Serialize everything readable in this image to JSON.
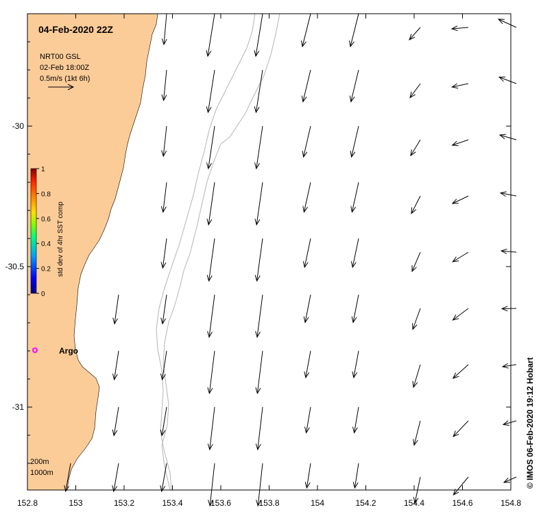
{
  "map": {
    "title": "04-Feb-2020 22Z",
    "legend": {
      "product": "NRT00 GSL",
      "time": "02-Feb 18:00Z",
      "scale": "0.5m/s (1kt 6h)"
    },
    "colorbar": {
      "label": "std dev of 4hr SST comp",
      "ticks": [
        "1",
        "0.8",
        "0.6",
        "0.4",
        "0.2",
        "0"
      ],
      "colors": [
        "#000080",
        "#0000ff",
        "#00a0ff",
        "#00ff80",
        "#80ff00",
        "#ffe000",
        "#ff8000",
        "#ff2000",
        "#800000"
      ]
    },
    "x_ticks": [
      "152.8",
      "153",
      "153.2",
      "153.4",
      "153.6",
      "153.8",
      "154",
      "154.2",
      "154.4",
      "154.6",
      "154.8"
    ],
    "y_ticks": [
      "-30",
      "-30.5",
      "-31"
    ],
    "argo_label": "Argo",
    "contours_label": [
      "200m",
      "1000m"
    ],
    "credit": "© IMOS 06-Feb-2020 19:12 Hobart",
    "colors": {
      "land": "#fccc98",
      "argo": "#ff00ff",
      "contour": "#b4b4b4",
      "arrow": "#000000"
    }
  }
}
